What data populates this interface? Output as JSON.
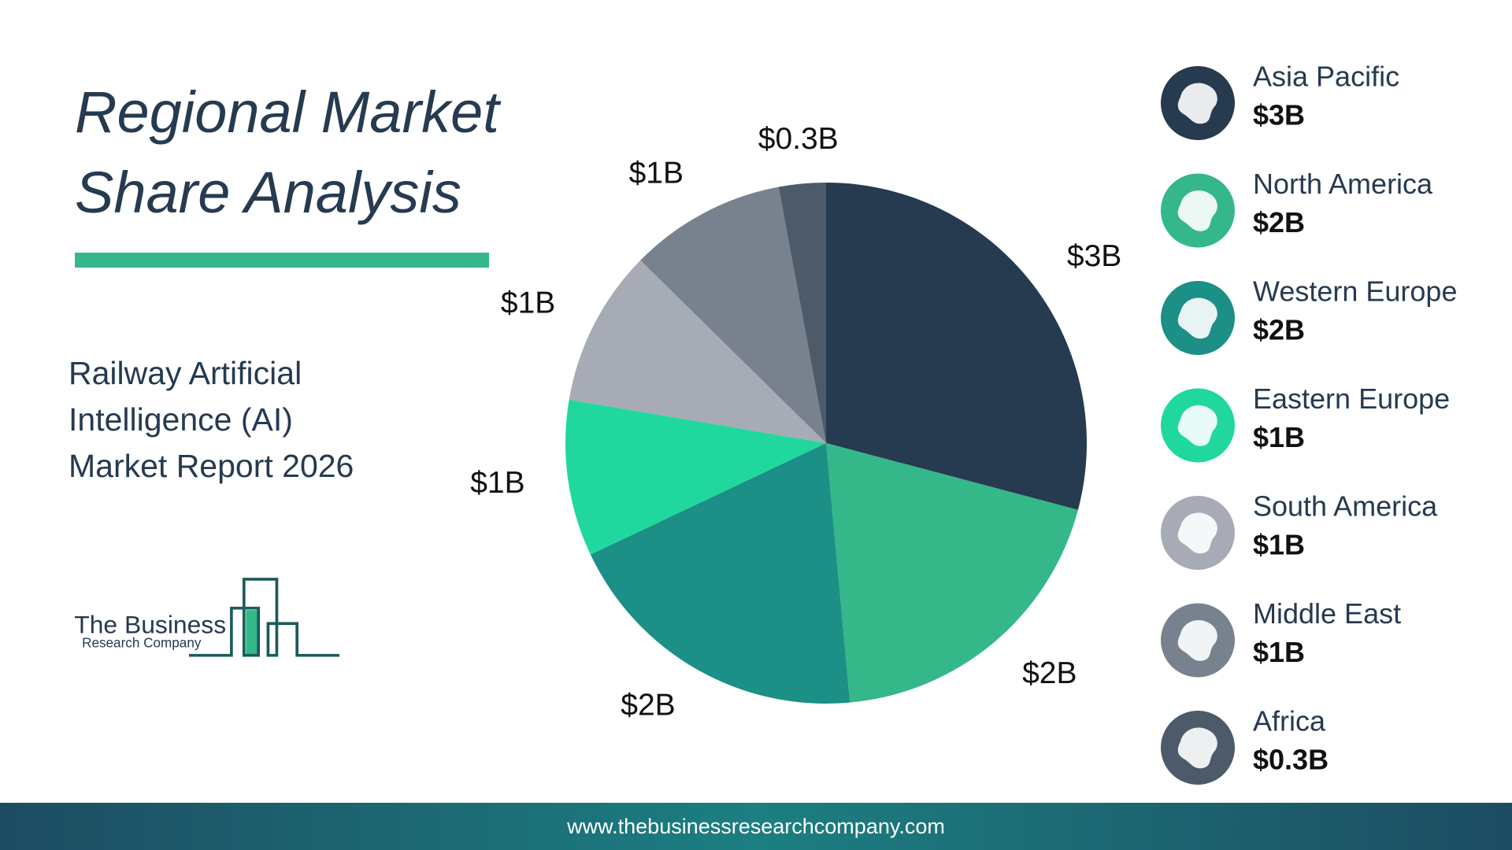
{
  "chart_data": {
    "type": "pie",
    "title": "Regional Market Share Analysis",
    "subtitle": "Railway Artificial Intelligence (AI) Market Report 2026",
    "categories": [
      "Asia Pacific",
      "North America",
      "Western Europe",
      "Eastern Europe",
      "South America",
      "Middle East",
      "Africa"
    ],
    "values": [
      3,
      2,
      2,
      1,
      1,
      1,
      0.3
    ],
    "value_labels": [
      "$3B",
      "$2B",
      "$2B",
      "$1B",
      "$1B",
      "$1B",
      "$0.3B"
    ],
    "colors": [
      "#263a50",
      "#34b88a",
      "#1c8f86",
      "#20d89e",
      "#a7abb6",
      "#78828f",
      "#4c5a6a"
    ],
    "legend": "right"
  },
  "logo": {
    "line1": "The Business",
    "line2": "Research Company"
  },
  "footer": {
    "url": "www.thebusinessresearchcompany.com"
  }
}
